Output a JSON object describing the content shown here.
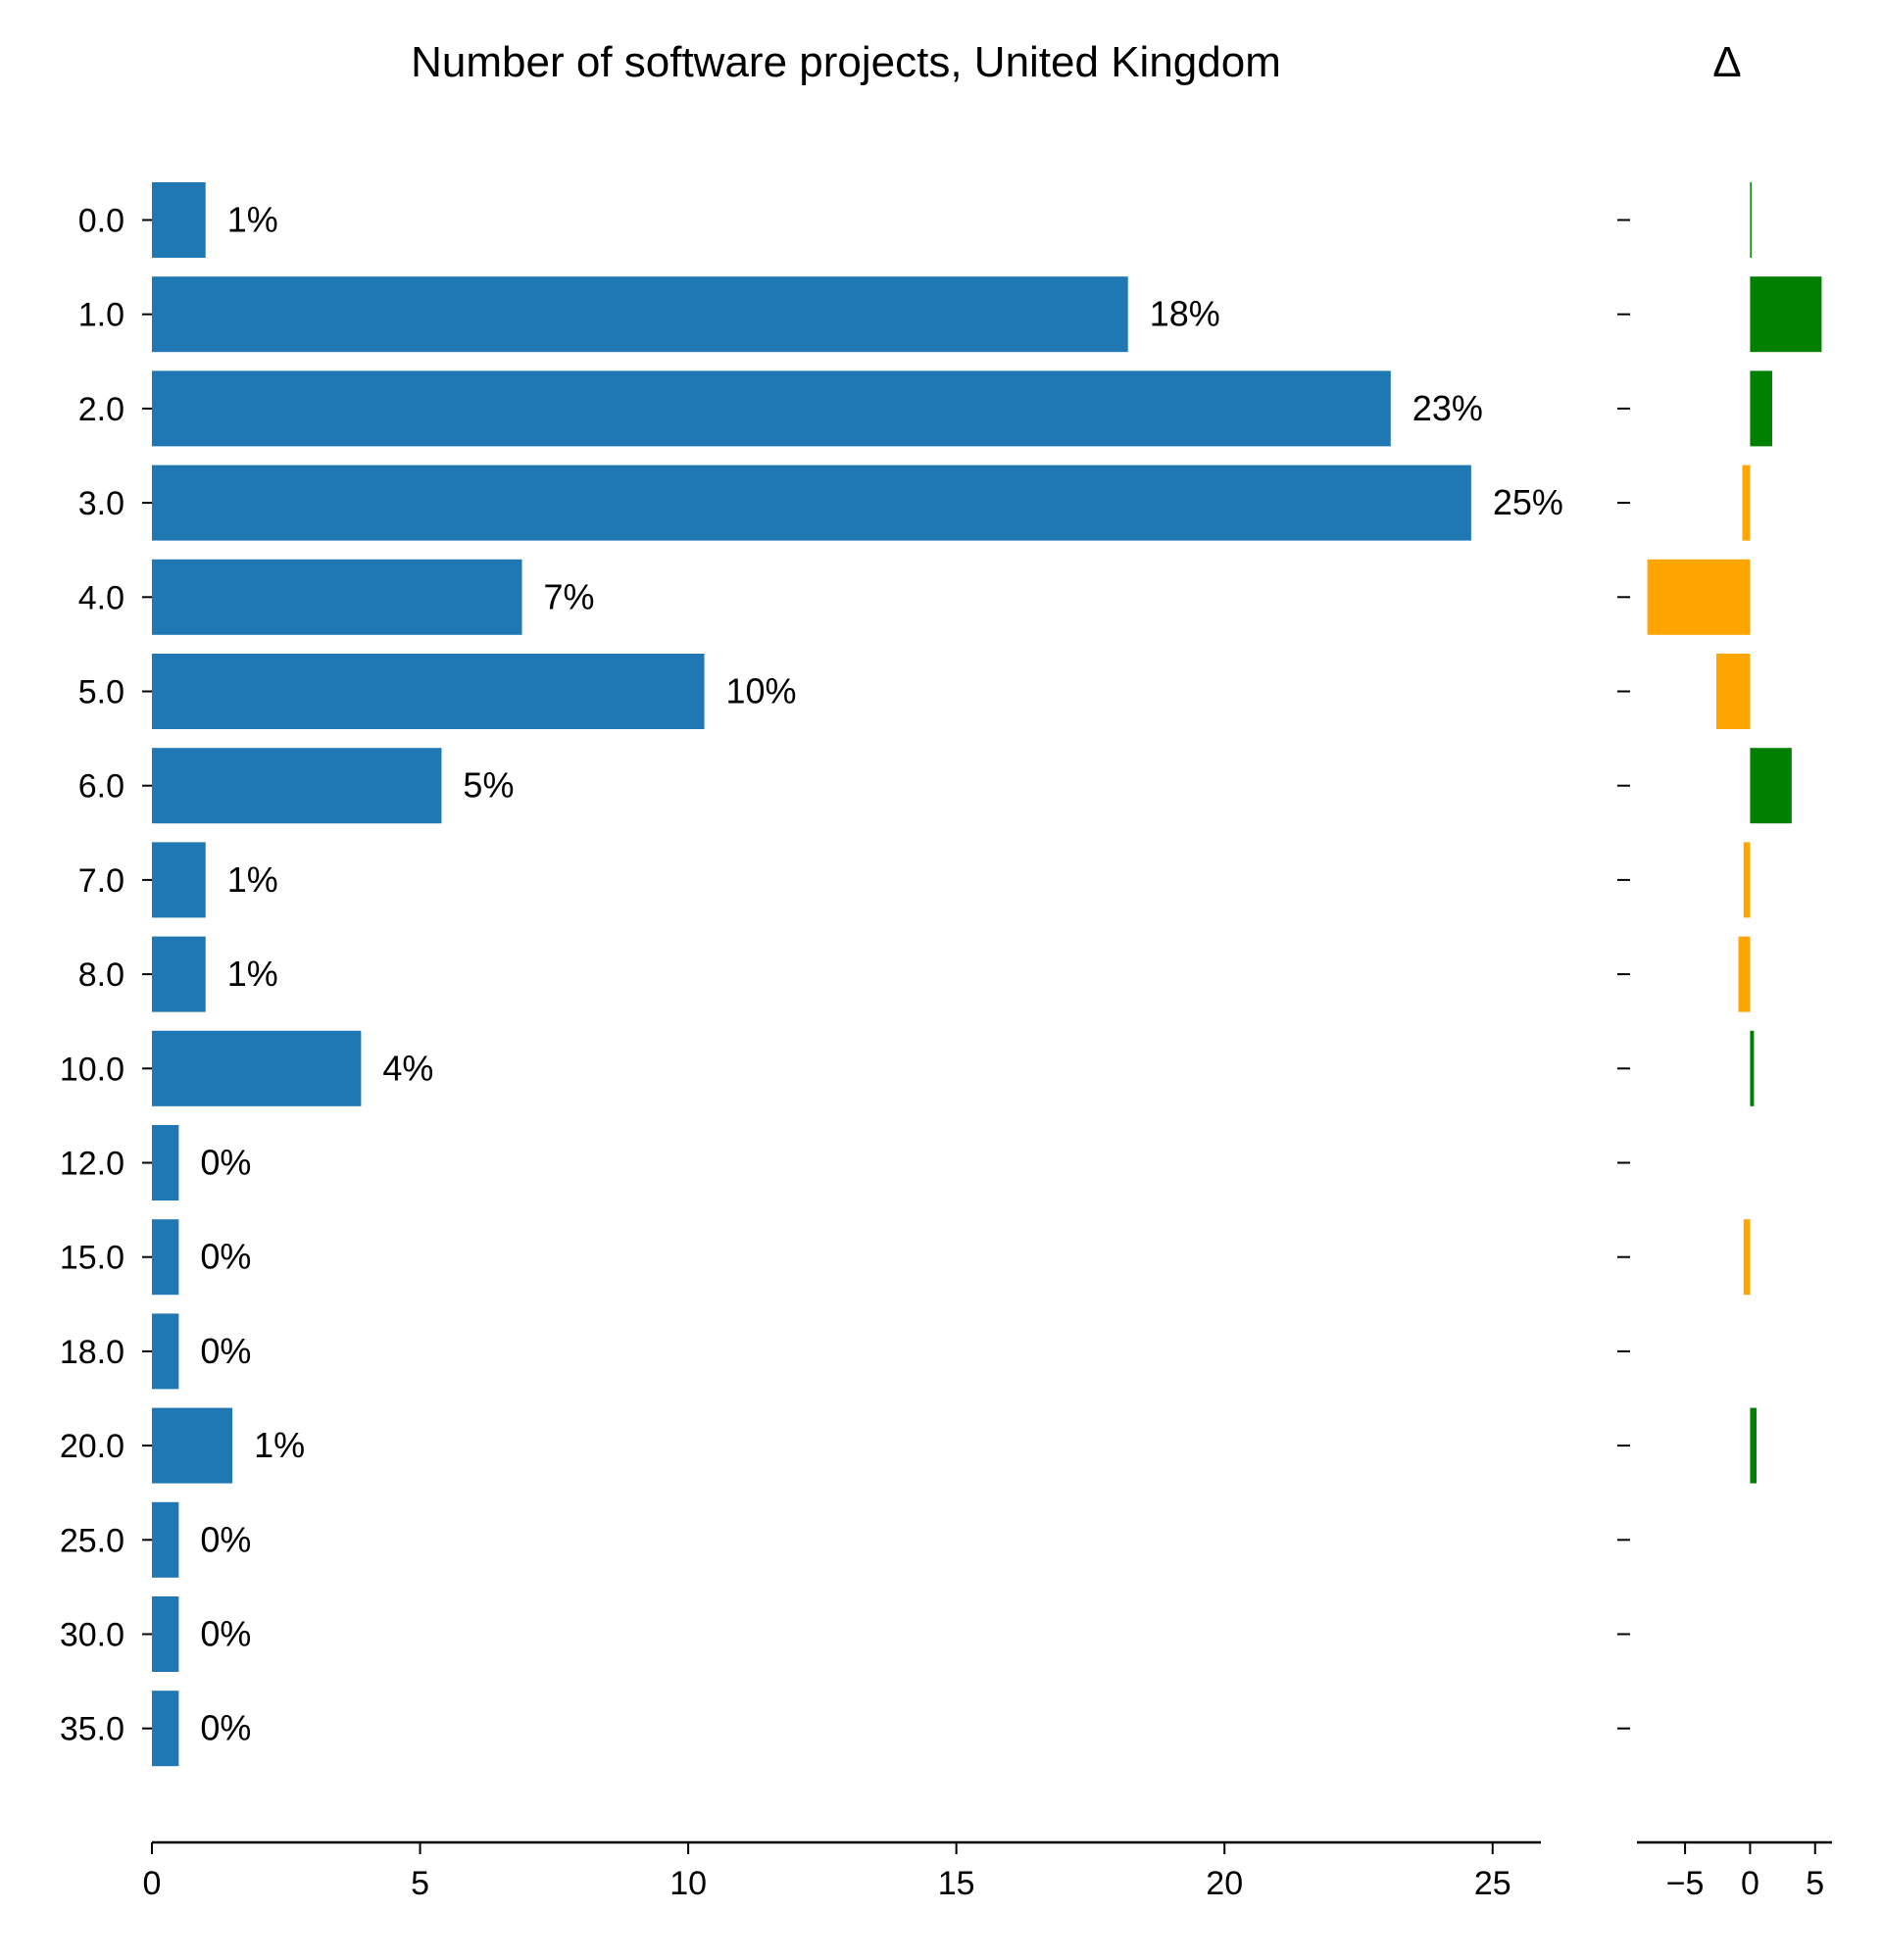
{
  "chart_data": [
    {
      "type": "bar",
      "orientation": "horizontal",
      "title": "Number of software projects, United Kingdom",
      "xlabel": "",
      "ylabel": "",
      "categories": [
        "0.0",
        "1.0",
        "2.0",
        "3.0",
        "4.0",
        "5.0",
        "6.0",
        "7.0",
        "8.0",
        "10.0",
        "12.0",
        "15.0",
        "18.0",
        "20.0",
        "25.0",
        "30.0",
        "35.0"
      ],
      "values": [
        1.0,
        18.2,
        23.1,
        24.6,
        6.9,
        10.3,
        5.4,
        1.0,
        1.0,
        3.9,
        0.5,
        0.5,
        0.5,
        1.5,
        0.5,
        0.5,
        0.5
      ],
      "data_labels": [
        "1%",
        "18%",
        "23%",
        "25%",
        "7%",
        "10%",
        "5%",
        "1%",
        "1%",
        "4%",
        "0%",
        "0%",
        "0%",
        "1%",
        "0%",
        "0%",
        "0%"
      ],
      "xlim": [
        0,
        25.9
      ],
      "xticks": [
        0,
        5,
        10,
        15,
        20,
        25
      ],
      "xtick_labels": [
        "0",
        "5",
        "10",
        "15",
        "20",
        "25"
      ],
      "color": "#1f77b4",
      "grid": false
    },
    {
      "type": "bar",
      "orientation": "horizontal",
      "title": "Δ",
      "xlabel": "",
      "ylabel": "",
      "categories": [
        "0.0",
        "1.0",
        "2.0",
        "3.0",
        "4.0",
        "5.0",
        "6.0",
        "7.0",
        "8.0",
        "10.0",
        "12.0",
        "15.0",
        "18.0",
        "20.0",
        "25.0",
        "30.0",
        "35.0"
      ],
      "values": [
        0.1,
        5.5,
        1.7,
        -0.6,
        -7.9,
        -2.6,
        3.2,
        -0.5,
        -0.9,
        0.3,
        0,
        -0.5,
        0,
        0.5,
        0,
        0,
        0
      ],
      "xlim": [
        -8.7,
        6.3
      ],
      "xticks": [
        -5,
        0,
        5
      ],
      "xtick_labels": [
        "−5",
        "0",
        "5"
      ],
      "positive_color": "#008000",
      "negative_color": "#ffa500",
      "grid": false
    }
  ]
}
